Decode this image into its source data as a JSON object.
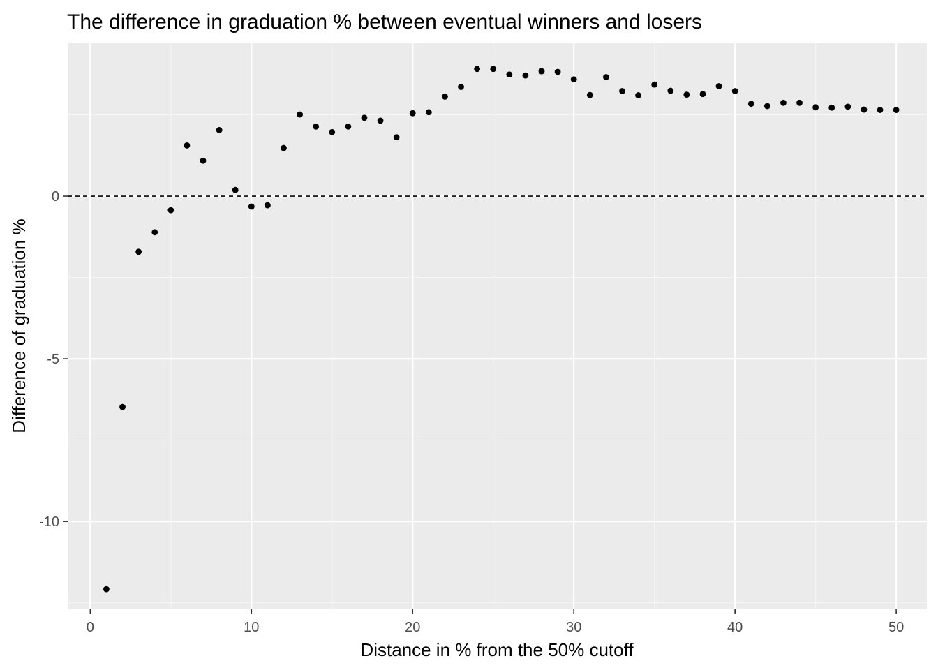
{
  "chart_data": {
    "type": "scatter",
    "title": "The difference in graduation % between eventual winners and losers",
    "xlabel": "Distance in % from the 50% cutoff",
    "ylabel": "Difference of graduation %",
    "xlim": [
      -1.4,
      51.9
    ],
    "ylim": [
      -12.7,
      4.7
    ],
    "x_ticks": [
      0,
      10,
      20,
      30,
      40,
      50
    ],
    "y_ticks": [
      -10,
      -5,
      0
    ],
    "x_tick_labels": [
      "0",
      "10",
      "20",
      "30",
      "40",
      "50"
    ],
    "y_tick_labels": [
      "-10",
      "-5",
      "0"
    ],
    "grid": true,
    "reference_line": {
      "y": 0,
      "style": "dashed"
    },
    "x": [
      1,
      2,
      3,
      4,
      5,
      6,
      7,
      8,
      9,
      10,
      11,
      12,
      13,
      14,
      15,
      16,
      17,
      18,
      19,
      20,
      21,
      22,
      23,
      24,
      25,
      26,
      27,
      28,
      29,
      30,
      31,
      32,
      33,
      34,
      35,
      36,
      37,
      38,
      39,
      40,
      41,
      42,
      43,
      44,
      45,
      46,
      47,
      48,
      49,
      50
    ],
    "y": [
      -12.08,
      -6.48,
      -1.71,
      -1.11,
      -0.43,
      1.56,
      1.09,
      2.03,
      0.19,
      -0.32,
      -0.28,
      1.48,
      2.51,
      2.14,
      1.97,
      2.14,
      2.41,
      2.32,
      1.81,
      2.55,
      2.58,
      3.06,
      3.36,
      3.91,
      3.91,
      3.74,
      3.71,
      3.84,
      3.82,
      3.59,
      3.11,
      3.66,
      3.23,
      3.1,
      3.43,
      3.24,
      3.12,
      3.14,
      3.38,
      3.23,
      2.84,
      2.77,
      2.87,
      2.87,
      2.73,
      2.72,
      2.75,
      2.66,
      2.65,
      2.65
    ],
    "colors": {
      "panel": "#ebebeb",
      "grid_major": "#ffffff",
      "grid_minor": "#f5f5f5",
      "point": "#000000",
      "tick": "#333333"
    }
  }
}
